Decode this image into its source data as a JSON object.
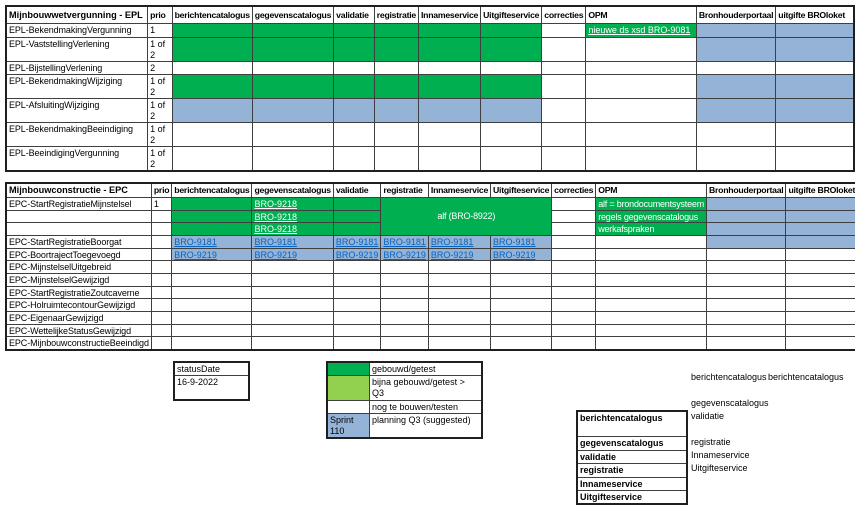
{
  "colors": {
    "green": "#00B050",
    "light_green": "#92D050",
    "blue": "#95B3D7",
    "link_blue": "#0563C1"
  },
  "columns": [
    "prio",
    "berichtencatalogus",
    "gegevenscatalogus",
    "validatie",
    "registratie",
    "Innameservice",
    "Uitgifteservice",
    "correcties",
    "OPM",
    "Bronhouderportaal",
    "uitgifte BROloket"
  ],
  "epl_table": {
    "title": "Mijnbouwwetvergunning - EPL",
    "rows": [
      {
        "label": "EPL-BekendmakingVergunning",
        "prio": "1",
        "cells": [
          {
            "bg": "green"
          },
          {
            "bg": "green"
          },
          {
            "bg": "green"
          },
          {
            "bg": "green"
          },
          {
            "bg": "green"
          },
          {
            "bg": "green"
          },
          {},
          {
            "bg": "green",
            "text": "nieuwe ds xsd BRO-9081",
            "fmt": "wlink"
          },
          {
            "bg": "blue"
          },
          {
            "bg": "blue"
          }
        ]
      },
      {
        "label": "EPL-VaststellingVerlening",
        "prio": "1 of 2",
        "cells": [
          {
            "bg": "green"
          },
          {
            "bg": "green"
          },
          {
            "bg": "green"
          },
          {
            "bg": "green"
          },
          {
            "bg": "green"
          },
          {
            "bg": "green"
          },
          {},
          {},
          {
            "bg": "blue"
          },
          {
            "bg": "blue"
          }
        ]
      },
      {
        "label": "EPL-BijstellingVerlening",
        "prio": "2",
        "cells": [
          {},
          {},
          {},
          {},
          {},
          {},
          {},
          {},
          {},
          {}
        ]
      },
      {
        "label": "EPL-BekendmakingWijziging",
        "prio": "1 of 2",
        "cells": [
          {
            "bg": "green"
          },
          {
            "bg": "green"
          },
          {
            "bg": "green"
          },
          {
            "bg": "green"
          },
          {
            "bg": "green"
          },
          {
            "bg": "green"
          },
          {},
          {},
          {
            "bg": "blue"
          },
          {
            "bg": "blue"
          }
        ]
      },
      {
        "label": "EPL-AfsluitingWijziging",
        "prio": "1 of 2",
        "cells": [
          {
            "bg": "blue"
          },
          {
            "bg": "blue"
          },
          {
            "bg": "blue"
          },
          {
            "bg": "blue"
          },
          {
            "bg": "blue"
          },
          {
            "bg": "blue"
          },
          {},
          {},
          {
            "bg": "blue"
          },
          {
            "bg": "blue"
          }
        ]
      },
      {
        "label": "EPL-BekendmakingBeeindiging",
        "prio": "1 of 2",
        "cells": [
          {},
          {},
          {},
          {},
          {},
          {},
          {},
          {},
          {},
          {}
        ]
      },
      {
        "label": "EPL-BeeindigingVergunning",
        "prio": "1 of 2",
        "cells": [
          {},
          {},
          {},
          {},
          {},
          {},
          {},
          {},
          {},
          {}
        ]
      }
    ]
  },
  "epc_table": {
    "title": "Mijnbouwconstructie - EPC",
    "rows": [
      {
        "label": "EPC-StartRegistratieMijnstelsel",
        "prio": "1",
        "cells": [
          {
            "bg": "green"
          },
          {
            "bg": "green",
            "text": "BRO-9218",
            "fmt": "wlink"
          },
          {
            "bg": "green"
          },
          {
            "bg": "green",
            "text": "alf (BRO-8922)",
            "fmt": "wtext center middle",
            "cs": 3,
            "rs": 3
          },
          {},
          {
            "bg": "green",
            "text": "alf = brondocumentsysteem",
            "fmt": "wtext"
          },
          {
            "bg": "blue"
          },
          {
            "bg": "blue"
          }
        ]
      },
      {
        "label": "",
        "prio": "",
        "cells": [
          {
            "bg": "green"
          },
          {
            "bg": "green",
            "text": "BRO-9218",
            "fmt": "wlink"
          },
          {
            "bg": "green"
          },
          {},
          {
            "bg": "green",
            "text": "regels gegevenscatalogus",
            "fmt": "wtext"
          },
          {
            "bg": "blue"
          },
          {
            "bg": "blue"
          }
        ]
      },
      {
        "label": "",
        "prio": "",
        "cells": [
          {
            "bg": "green"
          },
          {
            "bg": "green",
            "text": "BRO-9218",
            "fmt": "wlink"
          },
          {
            "bg": "green"
          },
          {},
          {
            "bg": "green",
            "text": "werkafspraken",
            "fmt": "wtext"
          },
          {
            "bg": "blue"
          },
          {
            "bg": "blue"
          }
        ]
      },
      {
        "label": "EPC-StartRegistratieBoorgat",
        "prio": "",
        "cells": [
          {
            "bg": "blue",
            "text": "BRO-9181",
            "fmt": "blink"
          },
          {
            "bg": "blue",
            "text": "BRO-9181",
            "fmt": "blink"
          },
          {
            "bg": "blue",
            "text": "BRO-9181",
            "fmt": "blink"
          },
          {
            "bg": "blue",
            "text": "BRO-9181",
            "fmt": "blink"
          },
          {
            "bg": "blue",
            "text": "BRO-9181",
            "fmt": "blink"
          },
          {
            "bg": "blue",
            "text": "BRO-9181",
            "fmt": "blink"
          },
          {},
          {},
          {
            "bg": "blue"
          },
          {
            "bg": "blue"
          }
        ]
      },
      {
        "label": "EPC-BoortrajectToegevoegd",
        "prio": "",
        "cells": [
          {
            "bg": "blue",
            "text": "BRO-9219",
            "fmt": "blink"
          },
          {
            "bg": "blue",
            "text": "BRO-9219",
            "fmt": "blink"
          },
          {
            "bg": "blue",
            "text": "BRO-9219",
            "fmt": "blink"
          },
          {
            "bg": "blue",
            "text": "BRO-9219",
            "fmt": "blink"
          },
          {
            "bg": "blue",
            "text": "BRO-9219",
            "fmt": "blink"
          },
          {
            "bg": "blue",
            "text": "BRO-9219",
            "fmt": "blink"
          },
          {},
          {},
          {},
          {}
        ]
      },
      {
        "label": "EPC-MijnstelselUitgebreid",
        "prio": "",
        "cells": [
          {},
          {},
          {},
          {},
          {},
          {},
          {},
          {},
          {},
          {}
        ]
      },
      {
        "label": "EPC-MijnstelselGewijzigd",
        "prio": "",
        "cells": [
          {},
          {},
          {},
          {},
          {},
          {},
          {},
          {},
          {},
          {}
        ]
      },
      {
        "label": "EPC-StartRegistratieZoutcaverne",
        "prio": "",
        "cells": [
          {},
          {},
          {},
          {},
          {},
          {},
          {},
          {},
          {},
          {}
        ]
      },
      {
        "label": "EPC-HolruimtecontourGewijzigd",
        "prio": "",
        "cells": [
          {},
          {},
          {},
          {},
          {},
          {},
          {},
          {},
          {},
          {}
        ]
      },
      {
        "label": "EPC-EigenaarGewijzigd",
        "prio": "",
        "cells": [
          {},
          {},
          {},
          {},
          {},
          {},
          {},
          {},
          {},
          {}
        ]
      },
      {
        "label": "EPC-WettelijkeStatusGewijzigd",
        "prio": "",
        "cells": [
          {},
          {},
          {},
          {},
          {},
          {},
          {},
          {},
          {},
          {}
        ]
      },
      {
        "label": "EPC-MijnbouwconstructieBeeindigd",
        "prio": "",
        "cells": [
          {},
          {},
          {},
          {},
          {},
          {},
          {},
          {},
          {},
          {}
        ]
      }
    ]
  },
  "status_box": {
    "label": "statusDate",
    "value": "16-9-2022"
  },
  "legend": {
    "items": [
      {
        "swatch_color": "green",
        "swatch_text": "",
        "label": "gebouwd/getest"
      },
      {
        "swatch_color": "light_green",
        "swatch_text": "",
        "label": "bijna gebouwd/getest > Q3"
      },
      {
        "swatch_color": "white",
        "swatch_text": "",
        "label": "nog te bouwen/testen"
      },
      {
        "swatch_color": "blue",
        "swatch_text": "Sprint 110",
        "label": "planning Q3 (suggested)"
      }
    ]
  },
  "notes": {
    "boxed_list": [
      "berichtencatalogus",
      "gegevenscatalogus",
      "validatie",
      "registratie",
      "Innameservice",
      "Uitgifteservice"
    ],
    "loose_list": [
      "berichtencatalogus",
      "",
      "gegevenscatalogus",
      "validatie",
      "",
      "registratie",
      "Innameservice",
      "Uitgifteservice"
    ],
    "loose_single": "berichtencatalogus"
  }
}
